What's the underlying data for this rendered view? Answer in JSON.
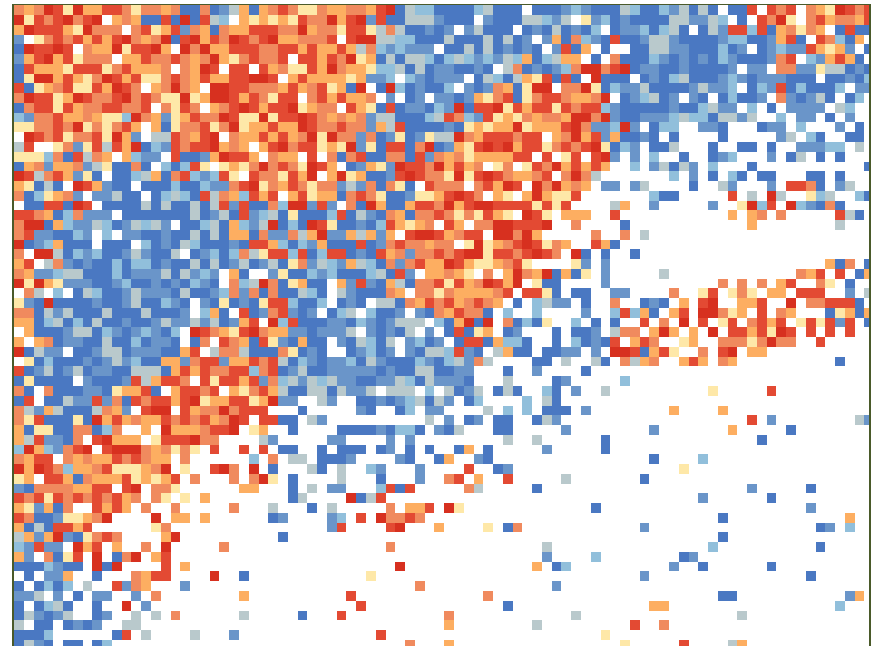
{
  "map": {
    "palette": {
      "dark_red": "#d7301f",
      "red": "#e34a33",
      "orange": "#f08a5e",
      "light_orange": "#fdae61",
      "pale_yellow": "#fee8a8",
      "grey_blue": "#b9c9cc",
      "light_blue": "#91bfdb",
      "mid_blue": "#6a95c9",
      "blue": "#4a78c2",
      "empty": "#ffffff"
    },
    "frame_color": "#4a5a2a"
  }
}
